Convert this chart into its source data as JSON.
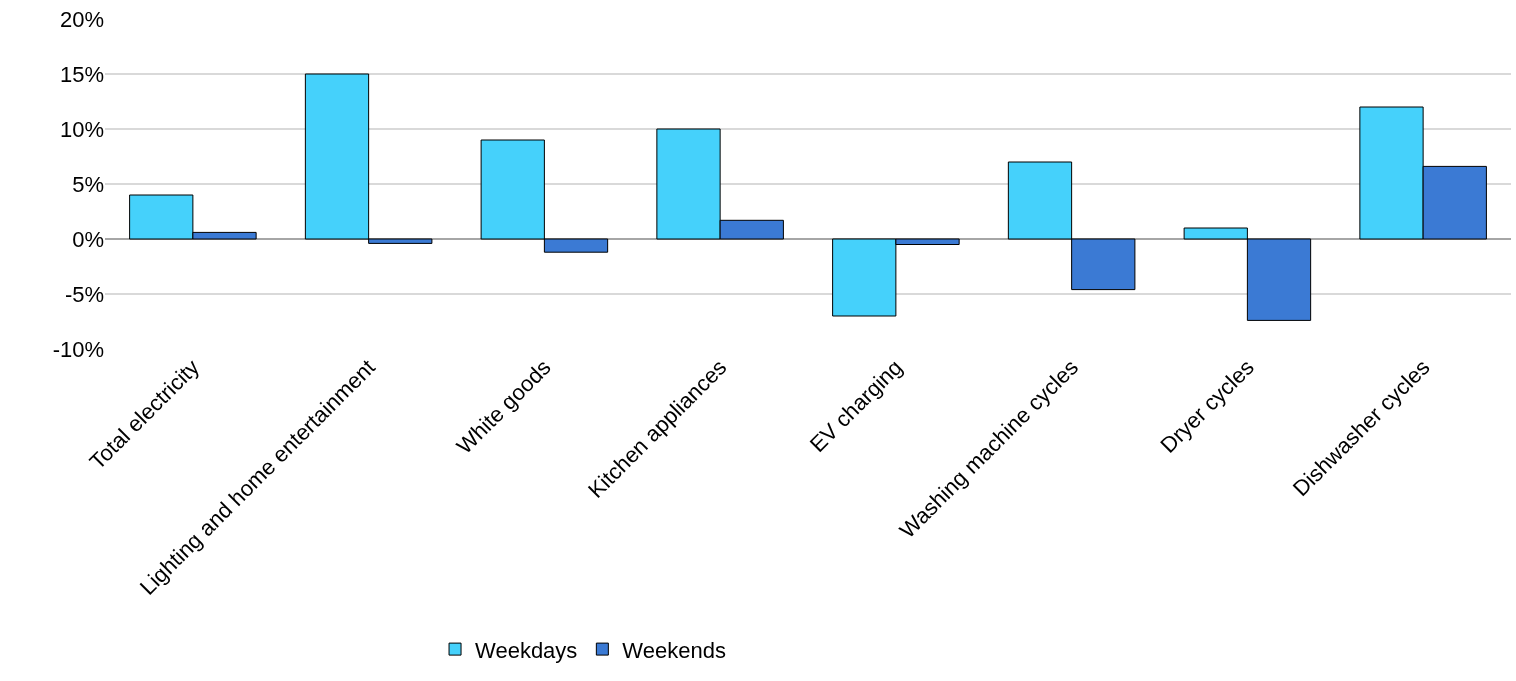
{
  "chart_data": {
    "type": "bar",
    "categories": [
      "Total electricity",
      "Lighting and home entertainment",
      "White goods",
      "Kitchen appliances",
      "EV charging",
      "Washing machine cycles",
      "Dryer cycles",
      "Dishwasher cycles"
    ],
    "series": [
      {
        "name": "Weekdays",
        "color": "#45d1fb",
        "values": [
          4,
          15,
          9,
          10,
          -7,
          7,
          1,
          12
        ]
      },
      {
        "name": "Weekends",
        "color": "#3b7ad4",
        "values": [
          0.6,
          -0.4,
          -1.2,
          1.7,
          -0.5,
          -4.6,
          -7.4,
          6.6
        ]
      }
    ],
    "ylim": [
      -10,
      20
    ],
    "yticks": [
      {
        "value": -10,
        "label": "-10%"
      },
      {
        "value": -5,
        "label": "-5%"
      },
      {
        "value": 0,
        "label": "0%"
      },
      {
        "value": 5,
        "label": "5%"
      },
      {
        "value": 10,
        "label": "10%"
      },
      {
        "value": 15,
        "label": "15%"
      },
      {
        "value": 20,
        "label": "20%"
      }
    ],
    "grid": "y",
    "legend": "bottom"
  }
}
